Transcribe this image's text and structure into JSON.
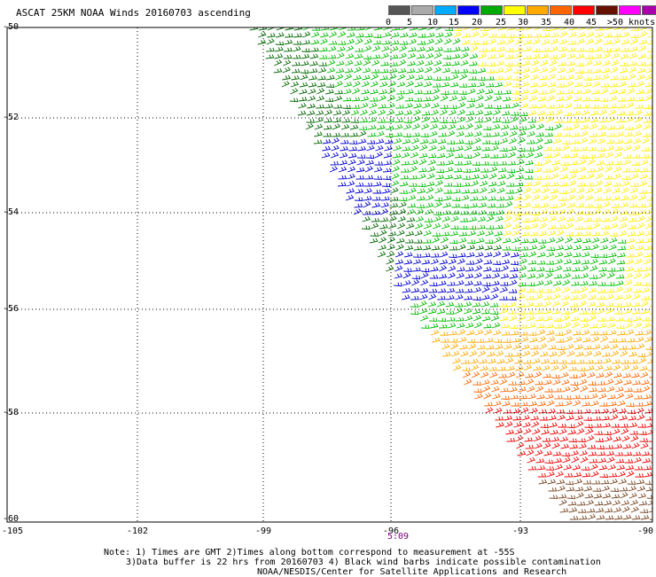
{
  "title": "ASCAT 25KM NOAA Winds 20160703 ascending",
  "legend": {
    "labels": [
      "0",
      "5",
      "10",
      "15",
      "20",
      "25",
      "30",
      "35",
      "40",
      "45",
      ">50 knots"
    ],
    "colors": [
      "#555555",
      "#aaaaaa",
      "#00aaff",
      "#0000ff",
      "#00aa00",
      "#ffff00",
      "#ffaa00",
      "#ff6600",
      "#ff0000",
      "#661100",
      "#ff00ff",
      "#aa00aa",
      "#440066"
    ]
  },
  "axes": {
    "lat_labels": [
      "-50",
      "-52",
      "-54",
      "-56",
      "-58",
      "-60"
    ],
    "lon_labels": [
      "-105",
      "-102",
      "-99",
      "-96",
      "-93",
      "-90"
    ]
  },
  "time_label": "5:09",
  "notes": {
    "line1": "Note: 1) Times are GMT 2)Times along bottom correspond to measurement at -55S",
    "line2": "3)Data buffer is 22 hrs from 20160703 4) Black wind barbs indicate possible contamination",
    "line3": "NOAA/NESDIS/Center for Satellite Applications and Research"
  },
  "wind_speed_bands": [
    {
      "region": "north-west",
      "color": "#006600"
    },
    {
      "region": "central",
      "color": "#00bb00"
    },
    {
      "region": "blue patch north",
      "color": "#0000cc"
    },
    {
      "region": "blue patch south",
      "color": "#0000cc"
    },
    {
      "region": "east",
      "color": "#ffee00"
    },
    {
      "region": "south mid",
      "color": "#ffaa00"
    },
    {
      "region": "south",
      "color": "#ff6600"
    },
    {
      "region": "far south",
      "color": "#ee0000"
    },
    {
      "region": "corner",
      "color": "#774422"
    }
  ]
}
